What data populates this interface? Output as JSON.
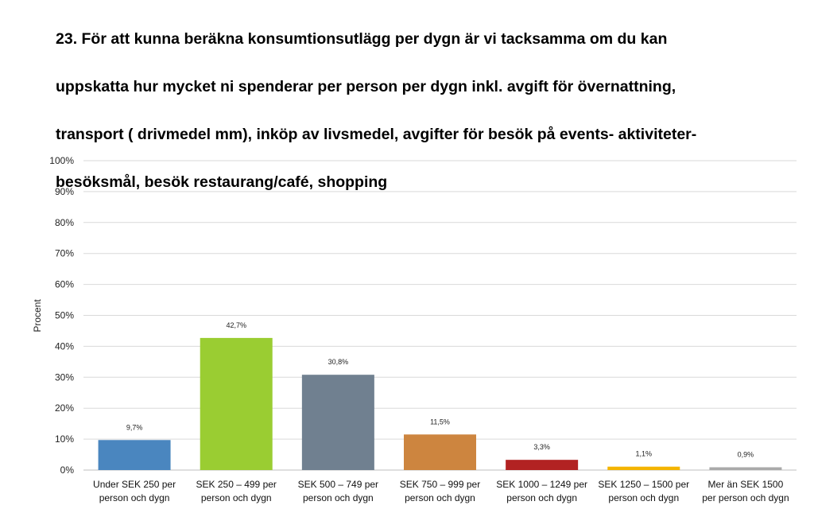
{
  "chart_data": {
    "type": "bar",
    "title": "23. För att kunna beräkna konsumtionsutlägg per dygn är vi tacksamma om du kan uppskatta hur mycket ni spenderar per person per dygn inkl. avgift för övernattning, transport ( drivmedel mm), inköp av livsmedel, avgifter för besök på events- aktiviteter-besöksmål, besök restaurang/café, shopping",
    "title_lines": [
      "23. För att kunna beräkna konsumtionsutlägg per dygn är vi tacksamma om du kan",
      "uppskatta hur mycket ni spenderar per person per dygn inkl. avgift för övernattning,",
      "transport ( drivmedel mm), inköp av livsmedel, avgifter för besök på events- aktiviteter-",
      "besöksmål, besök restaurang/café, shopping"
    ],
    "ylabel": "Procent",
    "xlabel": "",
    "ylim": [
      0,
      100
    ],
    "yticks": [
      "0%",
      "10%",
      "20%",
      "30%",
      "40%",
      "50%",
      "60%",
      "70%",
      "80%",
      "90%",
      "100%"
    ],
    "grid": true,
    "legend": "none",
    "categories": [
      [
        "Under SEK 250 per",
        "person och dygn"
      ],
      [
        "SEK 250 – 499   per",
        "person och dygn"
      ],
      [
        "SEK 500 – 749   per",
        "person och dygn"
      ],
      [
        "SEK 750 – 999   per",
        "person och dygn"
      ],
      [
        "SEK 1000 – 1249 per",
        "person och dygn"
      ],
      [
        "SEK 1250 – 1500 per",
        "person och dygn"
      ],
      [
        "Mer än SEK 1500",
        "per person och dygn"
      ]
    ],
    "values": [
      9.7,
      42.7,
      30.8,
      11.5,
      3.3,
      1.1,
      0.9
    ],
    "data_labels": [
      "9,7%",
      "42,7%",
      "30,8%",
      "11,5%",
      "3,3%",
      "1,1%",
      "0,9%"
    ],
    "colors": [
      "#4a86bf",
      "#9acd32",
      "#708090",
      "#cd853f",
      "#b22222",
      "#f4b400",
      "#a9a9a9"
    ]
  }
}
